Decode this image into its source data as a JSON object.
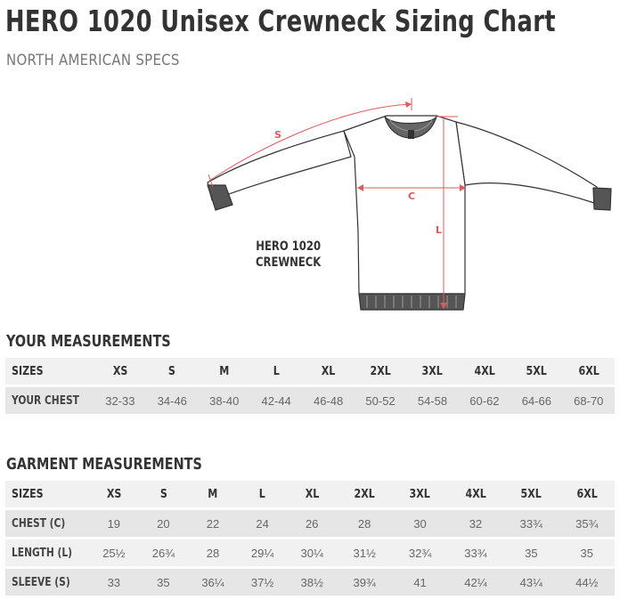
{
  "title": "HERO 1020 Unisex Crewneck Sizing Chart",
  "subtitle": "NORTH AMERICAN SPECS",
  "diagram": {
    "garment_name_line1": "HERO 1020",
    "garment_name_line2": "CREWNECK",
    "label_sleeve": "S",
    "label_chest": "C",
    "label_length": "L",
    "line_color": "#e05a5a"
  },
  "your_measurements": {
    "heading": "YOUR MEASUREMENTS",
    "sizes_label": "SIZES",
    "sizes": [
      "XS",
      "S",
      "M",
      "L",
      "XL",
      "2XL",
      "3XL",
      "4XL",
      "5XL",
      "6XL"
    ],
    "rows": [
      {
        "label": "YOUR CHEST",
        "values": [
          "32-33",
          "34-46",
          "38-40",
          "42-44",
          "46-48",
          "50-52",
          "54-58",
          "60-62",
          "64-66",
          "68-70"
        ]
      }
    ]
  },
  "garment_measurements": {
    "heading": "GARMENT MEASUREMENTS",
    "sizes_label": "SIZES",
    "sizes": [
      "XS",
      "S",
      "M",
      "L",
      "XL",
      "2XL",
      "3XL",
      "4XL",
      "5XL",
      "6XL"
    ],
    "rows": [
      {
        "label": "CHEST (C)",
        "values": [
          "19",
          "20",
          "22",
          "24",
          "26",
          "28",
          "30",
          "32",
          "33¾",
          "35¾"
        ]
      },
      {
        "label": "LENGTH (L)",
        "values": [
          "25½",
          "26¾",
          "28",
          "29¼",
          "30¼",
          "31½",
          "32¾",
          "33¾",
          "35",
          "35"
        ]
      },
      {
        "label": "SLEEVE (S)",
        "values": [
          "33",
          "35",
          "36¼",
          "37½",
          "38½",
          "39¾",
          "41",
          "42¼",
          "43¼",
          "44½"
        ]
      }
    ]
  }
}
